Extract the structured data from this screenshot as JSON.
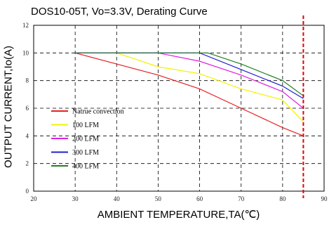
{
  "chart_data": {
    "type": "line",
    "title": "DOS10-05T, Vo=3.3V, Derating Curve",
    "xlabel": "AMBIENT TEMPERATURE,TA(℃)",
    "ylabel": "OUTPUT CURRENT,Io(A)",
    "xlim": [
      20,
      90
    ],
    "ylim": [
      0,
      12
    ],
    "xticks": [
      "20",
      "30",
      "40",
      "50",
      "60",
      "70",
      "80",
      "90"
    ],
    "yticks": [
      "0",
      "2",
      "4",
      "6",
      "8",
      "10",
      "12"
    ],
    "grid": true,
    "legend_position": "bottom-left",
    "limit_line": {
      "x": 85,
      "color": "#e00000"
    },
    "series": [
      {
        "name": "Natrue convection",
        "color": "#e62020",
        "x": [
          30,
          40,
          50,
          60,
          70,
          80,
          85
        ],
        "y": [
          10,
          9.2,
          8.4,
          7.4,
          6.0,
          4.6,
          4.0
        ]
      },
      {
        "name": "100 LFM",
        "color": "#f2f200",
        "x": [
          30,
          40,
          50,
          60,
          70,
          80,
          85
        ],
        "y": [
          10,
          10,
          9.0,
          8.5,
          7.4,
          6.6,
          5.0
        ]
      },
      {
        "name": "200 LFM",
        "color": "#e020e0",
        "x": [
          30,
          50,
          60,
          70,
          80,
          85
        ],
        "y": [
          10,
          10,
          9.4,
          8.4,
          7.2,
          6.0
        ]
      },
      {
        "name": "300 LFM",
        "color": "#2020d0",
        "x": [
          30,
          60,
          70,
          80,
          85
        ],
        "y": [
          10,
          10,
          8.8,
          7.6,
          6.7
        ]
      },
      {
        "name": "400 LFM",
        "color": "#208020",
        "x": [
          30,
          62,
          70,
          80,
          85
        ],
        "y": [
          10,
          10,
          9.2,
          8.0,
          6.9
        ]
      }
    ]
  }
}
